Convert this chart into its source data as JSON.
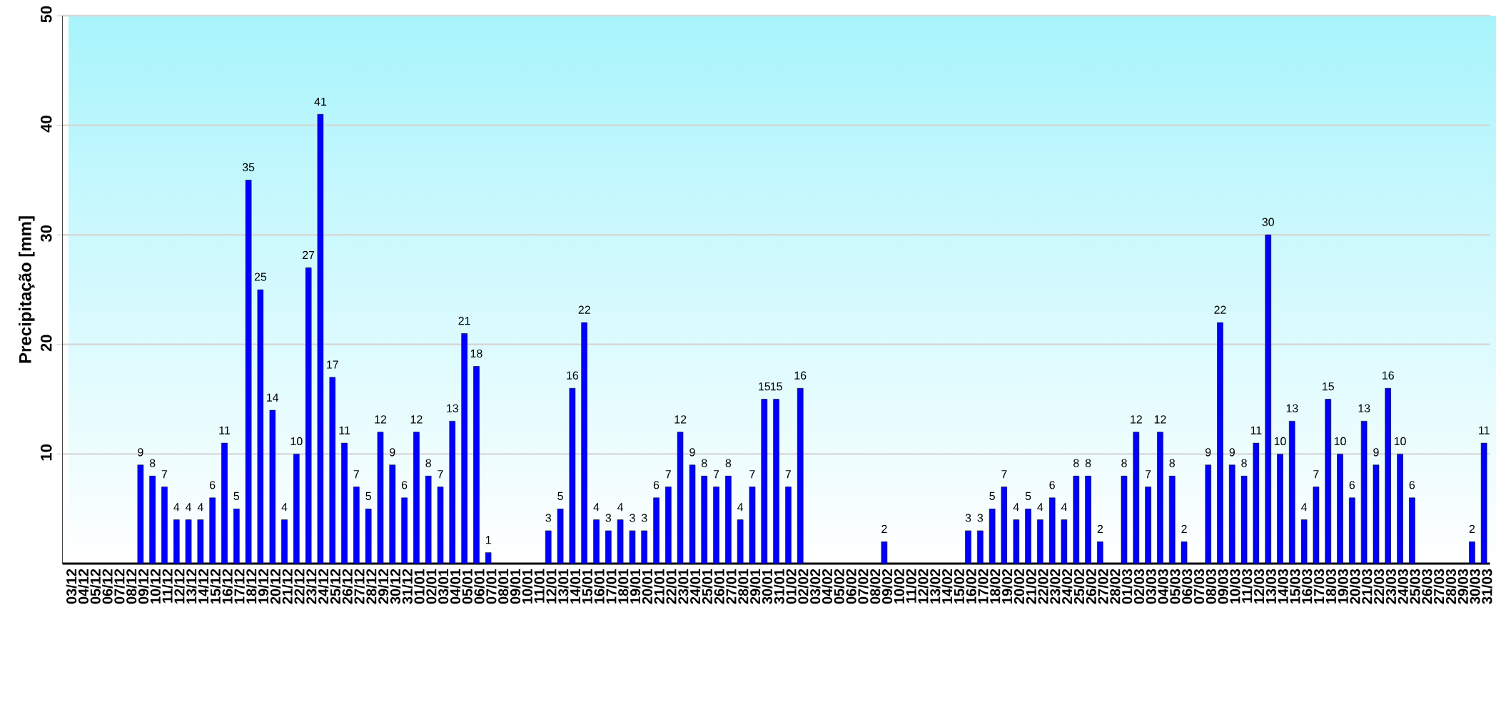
{
  "chart_data": {
    "type": "bar",
    "ylabel": "Precipitação [mm]",
    "categories": [
      "03/12",
      "04/12",
      "05/12",
      "06/12",
      "07/12",
      "08/12",
      "09/12",
      "10/12",
      "11/12",
      "12/12",
      "13/12",
      "14/12",
      "15/12",
      "16/12",
      "17/12",
      "18/12",
      "19/12",
      "20/12",
      "21/12",
      "22/12",
      "23/12",
      "24/12",
      "25/12",
      "26/12",
      "27/12",
      "28/12",
      "29/12",
      "30/12",
      "31/12",
      "01/01",
      "02/01",
      "03/01",
      "04/01",
      "05/01",
      "06/01",
      "07/01",
      "08/01",
      "09/01",
      "10/01",
      "11/01",
      "12/01",
      "13/01",
      "14/01",
      "15/01",
      "16/01",
      "17/01",
      "18/01",
      "19/01",
      "20/01",
      "21/01",
      "22/01",
      "23/01",
      "24/01",
      "25/01",
      "26/01",
      "27/01",
      "28/01",
      "29/01",
      "30/01",
      "31/01",
      "01/02",
      "02/02",
      "03/02",
      "04/02",
      "05/02",
      "06/02",
      "07/02",
      "08/02",
      "09/02",
      "10/02",
      "11/02",
      "12/02",
      "13/02",
      "14/02",
      "15/02",
      "16/02",
      "17/02",
      "18/02",
      "19/02",
      "20/02",
      "21/02",
      "22/02",
      "23/02",
      "24/02",
      "25/02",
      "26/02",
      "27/02",
      "28/02",
      "01/03",
      "02/03",
      "03/03",
      "04/03",
      "05/03",
      "06/03",
      "07/03",
      "08/03",
      "09/03",
      "10/03",
      "11/03",
      "12/03",
      "13/03",
      "14/03",
      "15/03",
      "16/03",
      "17/03",
      "18/03",
      "19/03",
      "20/03",
      "21/03",
      "22/03",
      "23/03",
      "24/03",
      "25/03",
      "26/03",
      "27/03",
      "28/03",
      "29/03",
      "30/03",
      "31/03"
    ],
    "values": [
      0,
      0,
      0,
      0,
      0,
      0,
      9,
      8,
      7,
      4,
      4,
      4,
      6,
      11,
      5,
      35,
      25,
      14,
      4,
      10,
      27,
      41,
      17,
      11,
      7,
      5,
      12,
      9,
      6,
      12,
      8,
      7,
      13,
      21,
      18,
      1,
      0,
      0,
      0,
      0,
      3,
      5,
      16,
      22,
      4,
      3,
      4,
      3,
      3,
      6,
      7,
      12,
      9,
      8,
      7,
      8,
      4,
      7,
      15,
      15,
      7,
      16,
      0,
      0,
      0,
      0,
      0,
      0,
      2,
      0,
      0,
      0,
      0,
      0,
      0,
      3,
      3,
      5,
      7,
      4,
      5,
      4,
      6,
      4,
      8,
      8,
      2,
      0,
      8,
      12,
      7,
      12,
      8,
      2,
      0,
      9,
      22,
      9,
      8,
      11,
      30,
      10,
      13,
      4,
      7,
      15,
      10,
      6,
      13,
      9,
      16,
      10,
      6,
      0,
      0,
      0,
      0,
      2,
      11
    ],
    "value_labels": [
      null,
      null,
      null,
      null,
      null,
      null,
      "9",
      "8",
      "7",
      "4",
      "4",
      "4",
      "6",
      "11",
      "5",
      "35",
      "25",
      "14",
      "4",
      "10",
      "27",
      "41",
      "17",
      "11",
      "7",
      "5",
      "12",
      "9",
      "6",
      "12",
      "8",
      "7",
      "13",
      "21",
      "18",
      "1",
      null,
      null,
      null,
      null,
      "3",
      "5",
      "16",
      "22",
      "4",
      "3",
      "4",
      "3",
      "3",
      "6",
      "7",
      "12",
      "9",
      "8",
      "7",
      "8",
      "4",
      "7",
      "15",
      "15",
      "7",
      "16",
      null,
      null,
      null,
      null,
      null,
      null,
      "2",
      null,
      null,
      null,
      null,
      null,
      null,
      "3",
      "3",
      "5",
      "7",
      "4",
      "5",
      "4",
      "6",
      "4",
      "8",
      "8",
      "2",
      null,
      "8",
      "12",
      "7",
      "12",
      "8",
      "2",
      null,
      "9",
      "22",
      "9",
      "8",
      "11",
      "30",
      "10",
      "13",
      "4",
      "7",
      "15",
      "10",
      "6",
      "13",
      "9",
      "16",
      "10",
      "6",
      null,
      null,
      null,
      null,
      "2",
      "11"
    ],
    "color": "#0000ff",
    "ylim": [
      0,
      50
    ],
    "yticks": [
      10,
      20,
      30,
      40,
      50
    ],
    "grid": "y"
  }
}
